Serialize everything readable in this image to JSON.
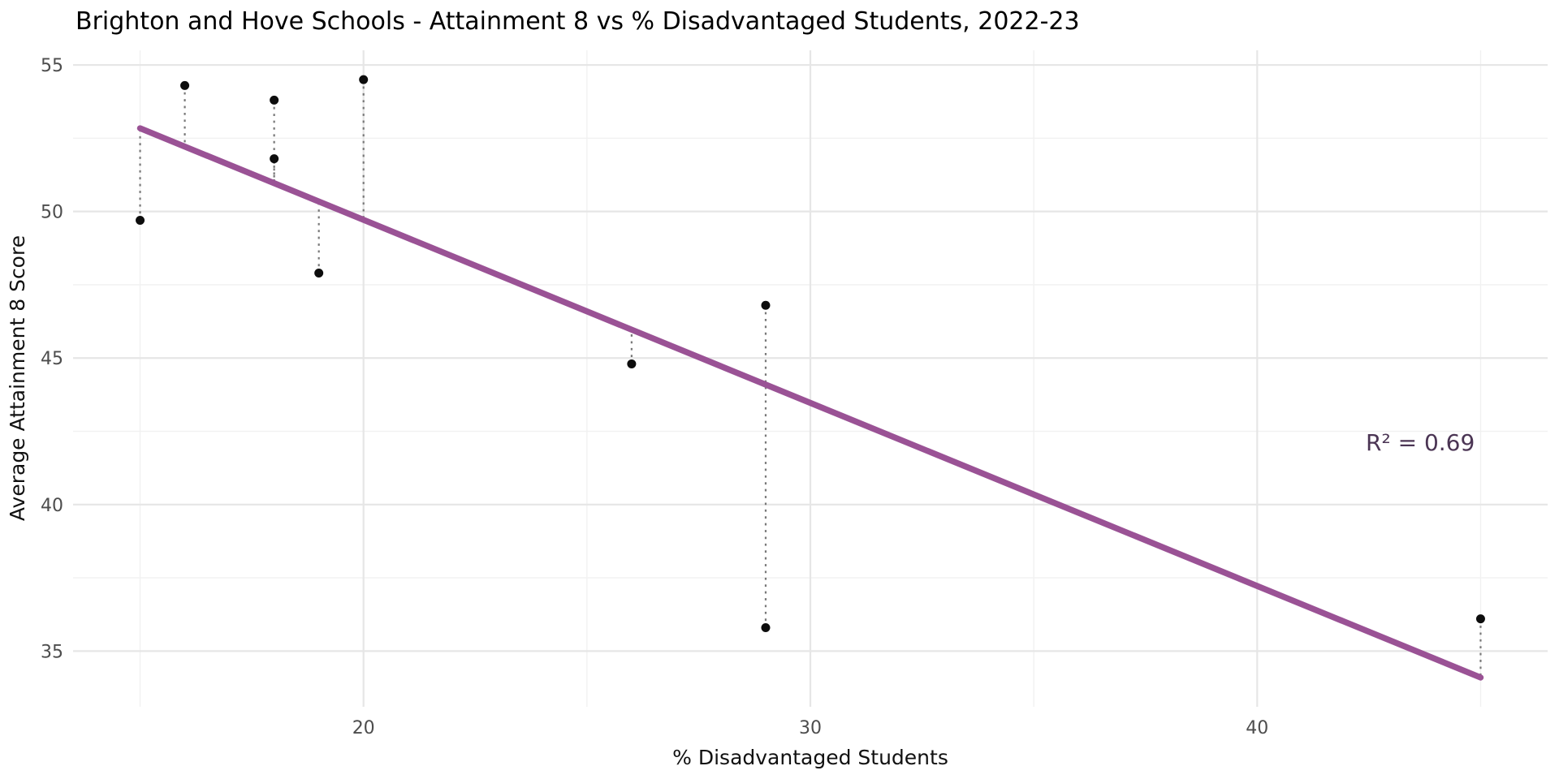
{
  "chart_data": {
    "type": "scatter",
    "title": "Brighton and Hove Schools - Attainment 8 vs % Disadvantaged Students, 2022-23",
    "xlabel": "% Disadvantaged Students",
    "ylabel": "Average Attainment 8 Score",
    "xlim": [
      13.5,
      46.5
    ],
    "ylim": [
      33.1,
      55.5
    ],
    "x_major_ticks": [
      20,
      30,
      40
    ],
    "x_minor_ticks": [
      15,
      25,
      35,
      45
    ],
    "y_major_ticks": [
      35,
      40,
      45,
      50,
      55
    ],
    "y_minor_ticks": [
      37.5,
      42.5,
      47.5,
      52.5
    ],
    "grid": "major and minor gridlines, white background",
    "legend": "none",
    "points": [
      {
        "x": 15.0,
        "y": 49.7
      },
      {
        "x": 16.0,
        "y": 54.3
      },
      {
        "x": 18.0,
        "y": 53.8
      },
      {
        "x": 18.0,
        "y": 51.8
      },
      {
        "x": 19.0,
        "y": 47.9
      },
      {
        "x": 20.0,
        "y": 54.5
      },
      {
        "x": 26.0,
        "y": 44.8
      },
      {
        "x": 29.0,
        "y": 46.8
      },
      {
        "x": 29.0,
        "y": 35.8
      },
      {
        "x": 45.0,
        "y": 36.1
      }
    ],
    "trend_line": {
      "x_start": 15,
      "x_end": 45,
      "slope": -0.6247,
      "intercept": 62.21
    },
    "residual_lines": "dotted vertical segments from each point to the trend line",
    "annotation": {
      "text": "R² = 0.69",
      "x": 43.65,
      "y": 42.1
    },
    "colors": {
      "trend_line": "#9A5295",
      "annotation_text": "#4B3554",
      "point": "#0d0d0d",
      "residual": "#787878",
      "grid_major": "#e6e6e6",
      "grid_minor": "#f1f1f1",
      "tick_text": "#4d4d4d"
    }
  }
}
